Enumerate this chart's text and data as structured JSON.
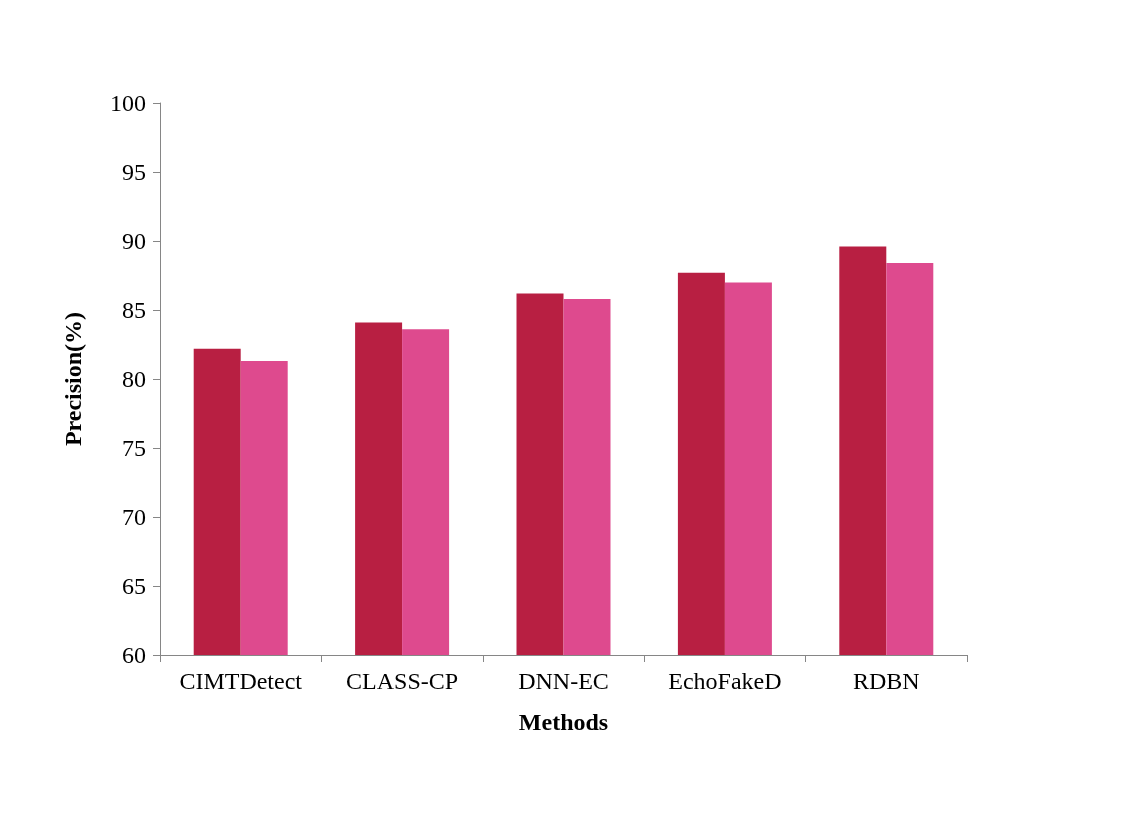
{
  "chart_data": {
    "type": "bar",
    "xlabel": "Methods",
    "ylabel": "Precision(%)",
    "categories": [
      "CIMTDetect",
      "CLASS-CP",
      "DNN-EC",
      "EchoFakeD",
      "RDBN"
    ],
    "series": [
      {
        "color": "#b81f42",
        "values": [
          82.2,
          84.1,
          86.2,
          87.7,
          89.6
        ]
      },
      {
        "color": "#de4a8e",
        "values": [
          81.3,
          83.6,
          85.8,
          87.0,
          88.4
        ]
      }
    ],
    "ylim": [
      60,
      100
    ],
    "yticks": [
      60,
      65,
      70,
      75,
      80,
      85,
      90,
      95,
      100
    ],
    "grid": false
  }
}
